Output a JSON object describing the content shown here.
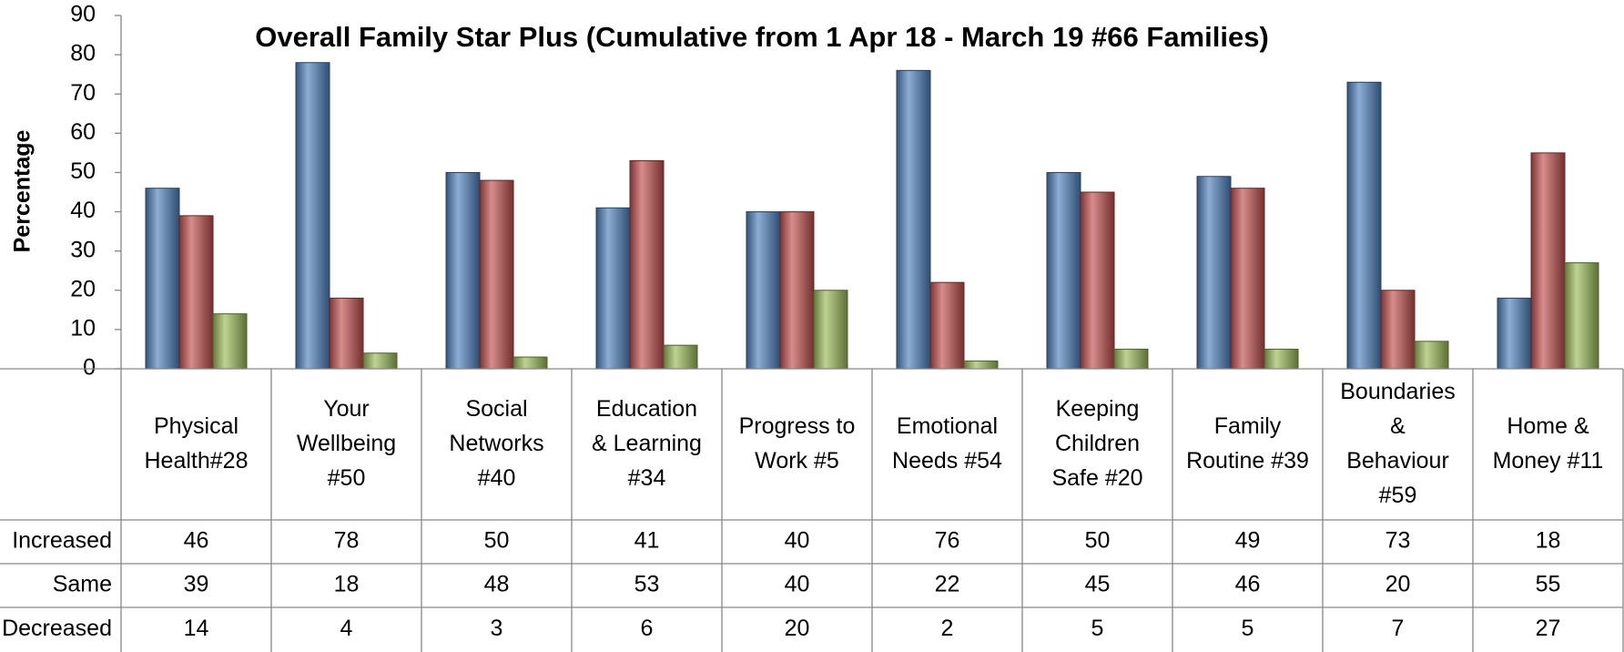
{
  "chart_data": {
    "type": "bar",
    "title": "Overall Family Star Plus (Cumulative from 1 Apr 18 - March 19  #66 Families)",
    "y_label": "Percentage",
    "categories": [
      "Physical\nHealth#28",
      "Your\nWellbeing\n#50",
      "Social\nNetworks\n#40",
      "Education\n& Learning\n#34",
      "Progress to\nWork #5",
      "Emotional\nNeeds #54",
      "Keeping\nChildren\nSafe #20",
      "Family\nRoutine #39",
      "Boundaries\n&\nBehaviour\n#59",
      "Home &\nMoney #11"
    ],
    "series": [
      {
        "name": "Increased",
        "color": "#4f81bd",
        "values": [
          46,
          78,
          50,
          41,
          40,
          76,
          50,
          49,
          73,
          18
        ]
      },
      {
        "name": "Same",
        "color": "#c0504d",
        "values": [
          39,
          18,
          48,
          53,
          40,
          22,
          45,
          46,
          20,
          55
        ]
      },
      {
        "name": "Decreased",
        "color": "#9bbb59",
        "values": [
          14,
          4,
          3,
          6,
          20,
          2,
          5,
          5,
          7,
          27
        ]
      }
    ],
    "ylim": [
      0,
      90
    ],
    "yticks": [
      0,
      10,
      20,
      30,
      40,
      50,
      60,
      70,
      80,
      90
    ],
    "data_table": true
  }
}
